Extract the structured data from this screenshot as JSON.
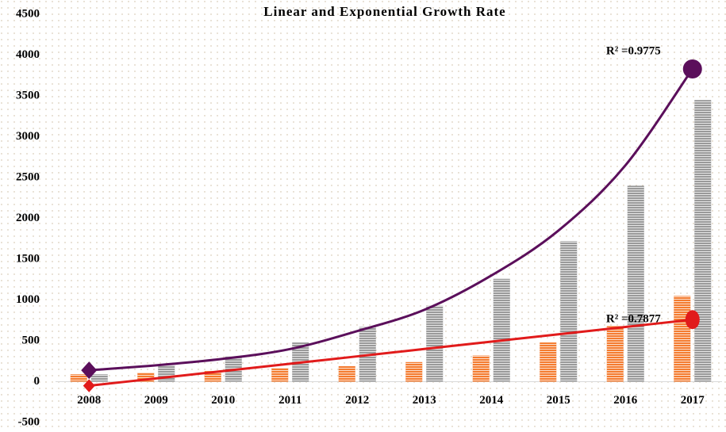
{
  "chart_data": {
    "type": "bar",
    "title": "Linear and Exponential Growth Rate",
    "categories": [
      "2008",
      "2009",
      "2010",
      "2011",
      "2012",
      "2013",
      "2014",
      "2015",
      "2016",
      "2017"
    ],
    "series": [
      {
        "type": "bar",
        "color": "#f47c30",
        "values": [
          90,
          110,
          130,
          170,
          190,
          240,
          320,
          480,
          680,
          1050
        ]
      },
      {
        "type": "bar",
        "color": "#9a9a9a",
        "values": [
          90,
          200,
          310,
          480,
          670,
          930,
          1260,
          1720,
          2400,
          3450
        ]
      },
      {
        "type": "line",
        "color": "#5b0f5b",
        "values": [
          140,
          200,
          280,
          400,
          620,
          880,
          1300,
          1850,
          2650,
          3830
        ],
        "marker_start": "diamond",
        "marker_end": "circle"
      },
      {
        "type": "line",
        "color": "#e11b1b",
        "values": [
          -50,
          40,
          130,
          220,
          310,
          400,
          490,
          580,
          670,
          760
        ],
        "marker_start": "diamond",
        "marker_end": "circle"
      }
    ],
    "annotations": [
      {
        "text": "R² =0.9775",
        "series": 2
      },
      {
        "text": "R² =0.7877",
        "series": 3
      }
    ],
    "ylim": [
      -500,
      4500
    ],
    "yticks": [
      -500,
      0,
      500,
      1000,
      1500,
      2000,
      2500,
      3000,
      3500,
      4000,
      4500
    ],
    "grid": false
  }
}
